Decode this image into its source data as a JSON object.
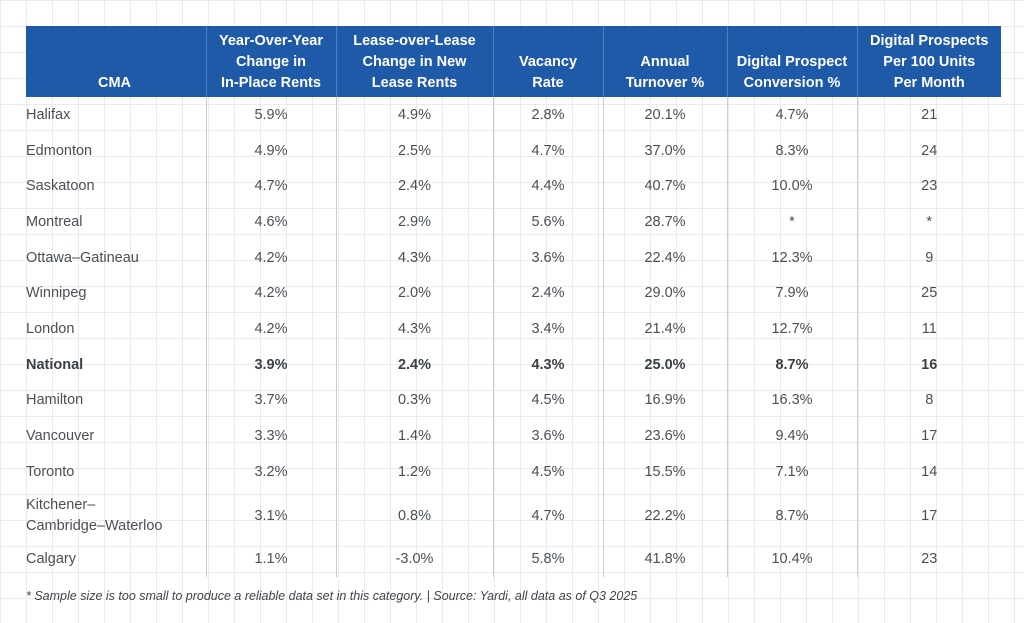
{
  "table": {
    "headers": {
      "cma": "CMA",
      "yoy": [
        "Year-Over-Year",
        "Change in",
        "In-Place Rents"
      ],
      "lol": [
        "Lease-over-Lease",
        "Change in New",
        "Lease Rents"
      ],
      "vacancy": [
        "Vacancy",
        "Rate"
      ],
      "turnover": [
        "Annual",
        "Turnover %"
      ],
      "conversion": [
        "Digital Prospect",
        "Conversion %"
      ],
      "prospects": [
        "Digital Prospects",
        "Per 100 Units",
        "Per Month"
      ]
    },
    "rows": [
      {
        "cma": "Halifax",
        "yoy": "5.9%",
        "lol": "4.9%",
        "vacancy": "2.8%",
        "turnover": "20.1%",
        "conversion": "4.7%",
        "prospects": "21"
      },
      {
        "cma": "Edmonton",
        "yoy": "4.9%",
        "lol": "2.5%",
        "vacancy": "4.7%",
        "turnover": "37.0%",
        "conversion": "8.3%",
        "prospects": "24"
      },
      {
        "cma": "Saskatoon",
        "yoy": "4.7%",
        "lol": "2.4%",
        "vacancy": "4.4%",
        "turnover": "40.7%",
        "conversion": "10.0%",
        "prospects": "23"
      },
      {
        "cma": "Montreal",
        "yoy": "4.6%",
        "lol": "2.9%",
        "vacancy": "5.6%",
        "turnover": "28.7%",
        "conversion": "*",
        "prospects": "*"
      },
      {
        "cma": "Ottawa–Gatineau",
        "yoy": "4.2%",
        "lol": "4.3%",
        "vacancy": "3.6%",
        "turnover": "22.4%",
        "conversion": "12.3%",
        "prospects": "9"
      },
      {
        "cma": "Winnipeg",
        "yoy": "4.2%",
        "lol": "2.0%",
        "vacancy": "2.4%",
        "turnover": "29.0%",
        "conversion": "7.9%",
        "prospects": "25"
      },
      {
        "cma": "London",
        "yoy": "4.2%",
        "lol": "4.3%",
        "vacancy": "3.4%",
        "turnover": "21.4%",
        "conversion": "12.7%",
        "prospects": "11"
      },
      {
        "cma": "National",
        "yoy": "3.9%",
        "lol": "2.4%",
        "vacancy": "4.3%",
        "turnover": "25.0%",
        "conversion": "8.7%",
        "prospects": "16"
      },
      {
        "cma": "Hamilton",
        "yoy": "3.7%",
        "lol": "0.3%",
        "vacancy": "4.5%",
        "turnover": "16.9%",
        "conversion": "16.3%",
        "prospects": "8"
      },
      {
        "cma": "Vancouver",
        "yoy": "3.3%",
        "lol": "1.4%",
        "vacancy": "3.6%",
        "turnover": "23.6%",
        "conversion": "9.4%",
        "prospects": "17"
      },
      {
        "cma": "Toronto",
        "yoy": "3.2%",
        "lol": "1.2%",
        "vacancy": "4.5%",
        "turnover": "15.5%",
        "conversion": "7.1%",
        "prospects": "14"
      },
      {
        "cma": [
          "Kitchener–",
          "Cambridge–Waterloo"
        ],
        "yoy": "3.1%",
        "lol": "0.8%",
        "vacancy": "4.7%",
        "turnover": "22.2%",
        "conversion": "8.7%",
        "prospects": "17"
      },
      {
        "cma": "Calgary",
        "yoy": "1.1%",
        "lol": "-3.0%",
        "vacancy": "5.8%",
        "turnover": "41.8%",
        "conversion": "10.4%",
        "prospects": "23"
      }
    ]
  },
  "footnote": "* Sample size is too small to produce a reliable data set in this category. | Source: Yardi, all data as of Q3 2025",
  "colors": {
    "header_bg": "#1f5aa8",
    "header_text": "#ffffff",
    "body_text": "#4a4f57",
    "divider": "#c9ccd1",
    "grid": "#e9ebee"
  }
}
